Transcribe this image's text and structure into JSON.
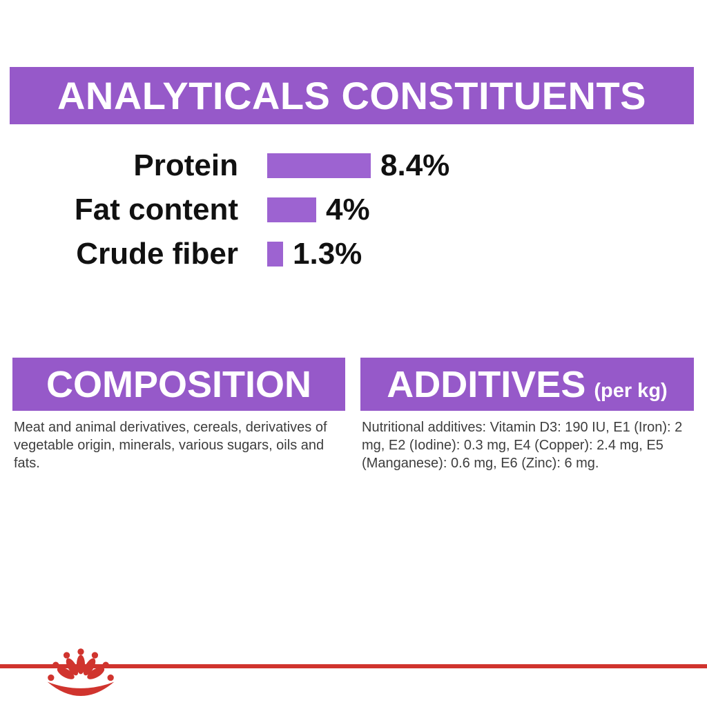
{
  "colors": {
    "header_purple": "#9659c9",
    "bar_purple": "#9d63d1",
    "brand_red": "#d0342e",
    "text_black": "#111111",
    "text_gray": "#3d3d3d"
  },
  "analytical": {
    "title": "ANALYTICALS CONSTITUENTS"
  },
  "chart_data": {
    "type": "bar",
    "orientation": "horizontal",
    "title": "ANALYTICALS CONSTITUENTS",
    "categories": [
      "Protein",
      "Fat content",
      "Crude fiber"
    ],
    "values": [
      8.4,
      4,
      1.3
    ],
    "labels": [
      "8.4%",
      "4%",
      "1.3%"
    ],
    "xlabel": "",
    "ylabel": "",
    "xlim": [
      0,
      8.4
    ],
    "bar_color": "#9d63d1",
    "grid": false,
    "legend": false
  },
  "composition": {
    "title": "COMPOSITION",
    "body": "Meat and animal derivatives, cereals, derivatives of vegetable origin, minerals, various sugars, oils and fats."
  },
  "additives": {
    "title": "ADDITIVES",
    "title_suffix": "(per kg)",
    "body": "Nutritional additives: Vitamin D3: 190 IU, E1 (Iron): 2 mg, E2 (Iodine): 0.3 mg, E4 (Copper): 2.4 mg, E5 (Manganese): 0.6 mg, E6 (Zinc): 6 mg."
  },
  "footer": {
    "brand_icon": "royal-canin-crown"
  }
}
